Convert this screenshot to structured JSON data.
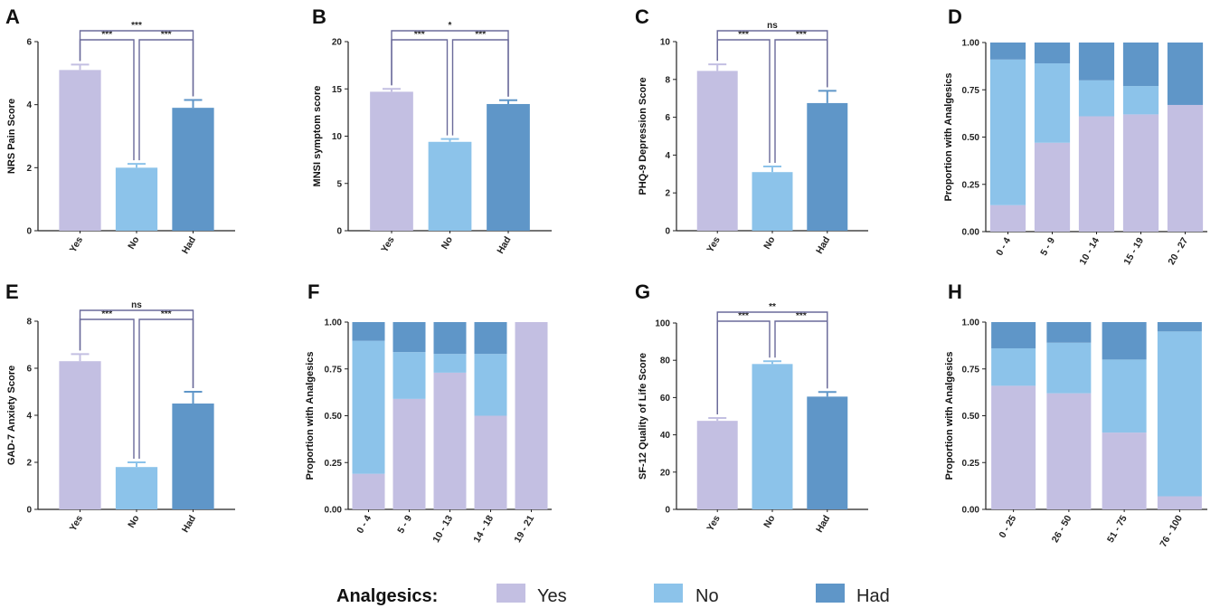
{
  "colors": {
    "yes": "#c3bfe2",
    "no": "#8cc3ea",
    "had": "#5f96c8",
    "bracket": "#6a6a9a",
    "axis": "#222222"
  },
  "legend": {
    "title": "Analgesics:",
    "items": [
      {
        "label": "Yes",
        "color_key": "yes"
      },
      {
        "label": "No",
        "color_key": "no"
      },
      {
        "label": "Had",
        "color_key": "had"
      }
    ]
  },
  "chart_data": [
    {
      "id": "A",
      "letter": "A",
      "type": "bar",
      "ylabel": "NRS Pain Score",
      "ylim": [
        0,
        6
      ],
      "yticks": [
        "0",
        "2",
        "4",
        "6"
      ],
      "categories": [
        "Yes",
        "No",
        "Had"
      ],
      "values": [
        5.1,
        2.0,
        3.9
      ],
      "errors": [
        0.17,
        0.12,
        0.25
      ],
      "comparisons": [
        {
          "from": 0,
          "to": 1,
          "label": "***"
        },
        {
          "from": 1,
          "to": 2,
          "label": "***"
        },
        {
          "from": 0,
          "to": 2,
          "label": "***"
        }
      ]
    },
    {
      "id": "B",
      "letter": "B",
      "type": "bar",
      "ylabel": "MNSI symptom score",
      "ylim": [
        0,
        20
      ],
      "yticks": [
        "0",
        "5",
        "10",
        "15",
        "20"
      ],
      "categories": [
        "Yes",
        "No",
        "Had"
      ],
      "values": [
        14.7,
        9.4,
        13.4
      ],
      "errors": [
        0.3,
        0.3,
        0.4
      ],
      "comparisons": [
        {
          "from": 0,
          "to": 1,
          "label": "***"
        },
        {
          "from": 1,
          "to": 2,
          "label": "***"
        },
        {
          "from": 0,
          "to": 2,
          "label": "*"
        }
      ]
    },
    {
      "id": "C",
      "letter": "C",
      "type": "bar",
      "ylabel": "PHQ-9 Depression Score",
      "ylim": [
        0,
        10
      ],
      "yticks": [
        "0",
        "2",
        "4",
        "6",
        "8",
        "10"
      ],
      "categories": [
        "Yes",
        "No",
        "Had"
      ],
      "values": [
        8.45,
        3.1,
        6.75
      ],
      "errors": [
        0.35,
        0.3,
        0.65
      ],
      "comparisons": [
        {
          "from": 0,
          "to": 1,
          "label": "***"
        },
        {
          "from": 1,
          "to": 2,
          "label": "***"
        },
        {
          "from": 0,
          "to": 2,
          "label": "ns"
        }
      ]
    },
    {
      "id": "D",
      "letter": "D",
      "type": "stacked_bar",
      "ylabel": "Proportion with Analgesics",
      "ylim": [
        0,
        1
      ],
      "yticks": [
        "0.00",
        "0.25",
        "0.50",
        "0.75",
        "1.00"
      ],
      "categories": [
        "0 - 4",
        "5 - 9",
        "10 - 14",
        "15 - 19",
        "20 - 27"
      ],
      "series": [
        {
          "name": "Yes",
          "values": [
            0.14,
            0.47,
            0.61,
            0.62,
            0.67
          ]
        },
        {
          "name": "No",
          "values": [
            0.77,
            0.42,
            0.19,
            0.15,
            0.0
          ]
        },
        {
          "name": "Had",
          "values": [
            0.09,
            0.11,
            0.2,
            0.23,
            0.33
          ]
        }
      ]
    },
    {
      "id": "E",
      "letter": "E",
      "type": "bar",
      "ylabel": "GAD-7 Anxiety Score",
      "ylim": [
        0,
        8
      ],
      "yticks": [
        "0",
        "2",
        "4",
        "6",
        "8"
      ],
      "categories": [
        "Yes",
        "No",
        "Had"
      ],
      "values": [
        6.3,
        1.8,
        4.5
      ],
      "errors": [
        0.3,
        0.2,
        0.5
      ],
      "comparisons": [
        {
          "from": 0,
          "to": 1,
          "label": "***"
        },
        {
          "from": 1,
          "to": 2,
          "label": "***"
        },
        {
          "from": 0,
          "to": 2,
          "label": "ns"
        }
      ]
    },
    {
      "id": "F",
      "letter": "F",
      "type": "stacked_bar",
      "ylabel": "Proportion with Analgesics",
      "ylim": [
        0,
        1
      ],
      "yticks": [
        "0.00",
        "0.25",
        "0.50",
        "0.75",
        "1.00"
      ],
      "categories": [
        "0 - 4",
        "5 - 9",
        "10 - 13",
        "14 - 18",
        "19 - 21"
      ],
      "series": [
        {
          "name": "Yes",
          "values": [
            0.19,
            0.59,
            0.73,
            0.5,
            1.0
          ]
        },
        {
          "name": "No",
          "values": [
            0.71,
            0.25,
            0.1,
            0.33,
            0.0
          ]
        },
        {
          "name": "Had",
          "values": [
            0.1,
            0.16,
            0.17,
            0.17,
            0.0
          ]
        }
      ]
    },
    {
      "id": "G",
      "letter": "G",
      "type": "bar",
      "ylabel": "SF-12 Quality of Life Score",
      "ylim": [
        0,
        100
      ],
      "yticks": [
        "0",
        "20",
        "40",
        "60",
        "80",
        "100"
      ],
      "categories": [
        "Yes",
        "No",
        "Had"
      ],
      "values": [
        47.5,
        78.0,
        60.5
      ],
      "errors": [
        1.5,
        1.5,
        2.5
      ],
      "comparisons": [
        {
          "from": 0,
          "to": 1,
          "label": "***"
        },
        {
          "from": 1,
          "to": 2,
          "label": "***"
        },
        {
          "from": 0,
          "to": 2,
          "label": "**"
        }
      ]
    },
    {
      "id": "H",
      "letter": "H",
      "type": "stacked_bar",
      "ylabel": "Proportion with Analgesics",
      "ylim": [
        0,
        1
      ],
      "yticks": [
        "0.00",
        "0.25",
        "0.50",
        "0.75",
        "1.00"
      ],
      "categories": [
        "0 - 25",
        "26 - 50",
        "51 - 75",
        "76 - 100"
      ],
      "series": [
        {
          "name": "Yes",
          "values": [
            0.66,
            0.62,
            0.41,
            0.07
          ]
        },
        {
          "name": "No",
          "values": [
            0.2,
            0.27,
            0.39,
            0.88
          ]
        },
        {
          "name": "Had",
          "values": [
            0.14,
            0.11,
            0.2,
            0.05
          ]
        }
      ]
    }
  ]
}
